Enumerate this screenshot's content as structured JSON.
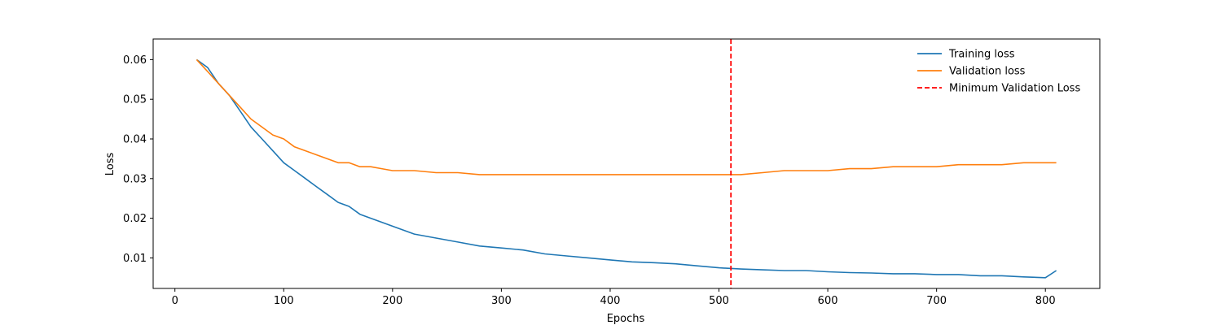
{
  "chart_data": {
    "type": "line",
    "title": "",
    "xlabel": "Epochs",
    "ylabel": "Loss",
    "xlim": [
      -20,
      850
    ],
    "ylim": [
      0.0023,
      0.0652
    ],
    "xticks": [
      0,
      100,
      200,
      300,
      400,
      500,
      600,
      700,
      800
    ],
    "yticks": [
      0.01,
      0.02,
      0.03,
      0.04,
      0.05,
      0.06
    ],
    "xtick_labels": [
      "0",
      "100",
      "200",
      "300",
      "400",
      "500",
      "600",
      "700",
      "800"
    ],
    "ytick_labels": [
      "0.01",
      "0.02",
      "0.03",
      "0.04",
      "0.05",
      "0.06"
    ],
    "grid": false,
    "legend_position": "top-right",
    "min_validation_epoch": 511,
    "series": [
      {
        "name": "Training loss",
        "color": "#1f77b4",
        "style": "solid",
        "x": [
          20,
          30,
          40,
          50,
          60,
          70,
          80,
          90,
          100,
          110,
          120,
          130,
          140,
          150,
          160,
          170,
          180,
          190,
          200,
          220,
          240,
          260,
          280,
          300,
          320,
          340,
          360,
          380,
          400,
          420,
          440,
          460,
          480,
          500,
          520,
          540,
          560,
          580,
          600,
          620,
          640,
          660,
          680,
          700,
          720,
          740,
          760,
          780,
          800,
          810
        ],
        "y": [
          0.06,
          0.058,
          0.054,
          0.051,
          0.047,
          0.043,
          0.04,
          0.037,
          0.034,
          0.032,
          0.03,
          0.028,
          0.026,
          0.024,
          0.023,
          0.021,
          0.02,
          0.019,
          0.018,
          0.016,
          0.015,
          0.014,
          0.013,
          0.0125,
          0.012,
          0.011,
          0.0105,
          0.01,
          0.0095,
          0.009,
          0.0088,
          0.0085,
          0.008,
          0.0075,
          0.0072,
          0.007,
          0.0068,
          0.0068,
          0.0065,
          0.0063,
          0.0062,
          0.006,
          0.006,
          0.0058,
          0.0058,
          0.0055,
          0.0055,
          0.0052,
          0.005,
          0.0068
        ]
      },
      {
        "name": "Validation loss",
        "color": "#ff7f0e",
        "style": "solid",
        "x": [
          20,
          30,
          40,
          50,
          60,
          70,
          80,
          90,
          100,
          110,
          120,
          130,
          140,
          150,
          160,
          170,
          180,
          190,
          200,
          220,
          240,
          260,
          280,
          300,
          320,
          340,
          360,
          380,
          400,
          420,
          440,
          460,
          480,
          500,
          520,
          540,
          560,
          580,
          600,
          620,
          640,
          660,
          680,
          700,
          720,
          740,
          760,
          780,
          800,
          810
        ],
        "y": [
          0.06,
          0.057,
          0.054,
          0.051,
          0.048,
          0.045,
          0.043,
          0.041,
          0.04,
          0.038,
          0.037,
          0.036,
          0.035,
          0.034,
          0.034,
          0.033,
          0.033,
          0.0325,
          0.032,
          0.032,
          0.0315,
          0.0315,
          0.031,
          0.031,
          0.031,
          0.031,
          0.031,
          0.031,
          0.031,
          0.031,
          0.031,
          0.031,
          0.031,
          0.031,
          0.031,
          0.0315,
          0.032,
          0.032,
          0.032,
          0.0325,
          0.0325,
          0.033,
          0.033,
          0.033,
          0.0335,
          0.0335,
          0.0335,
          0.034,
          0.034,
          0.034
        ]
      },
      {
        "name": "Minimum Validation Loss",
        "color": "#ff0000",
        "style": "dashed"
      }
    ]
  }
}
